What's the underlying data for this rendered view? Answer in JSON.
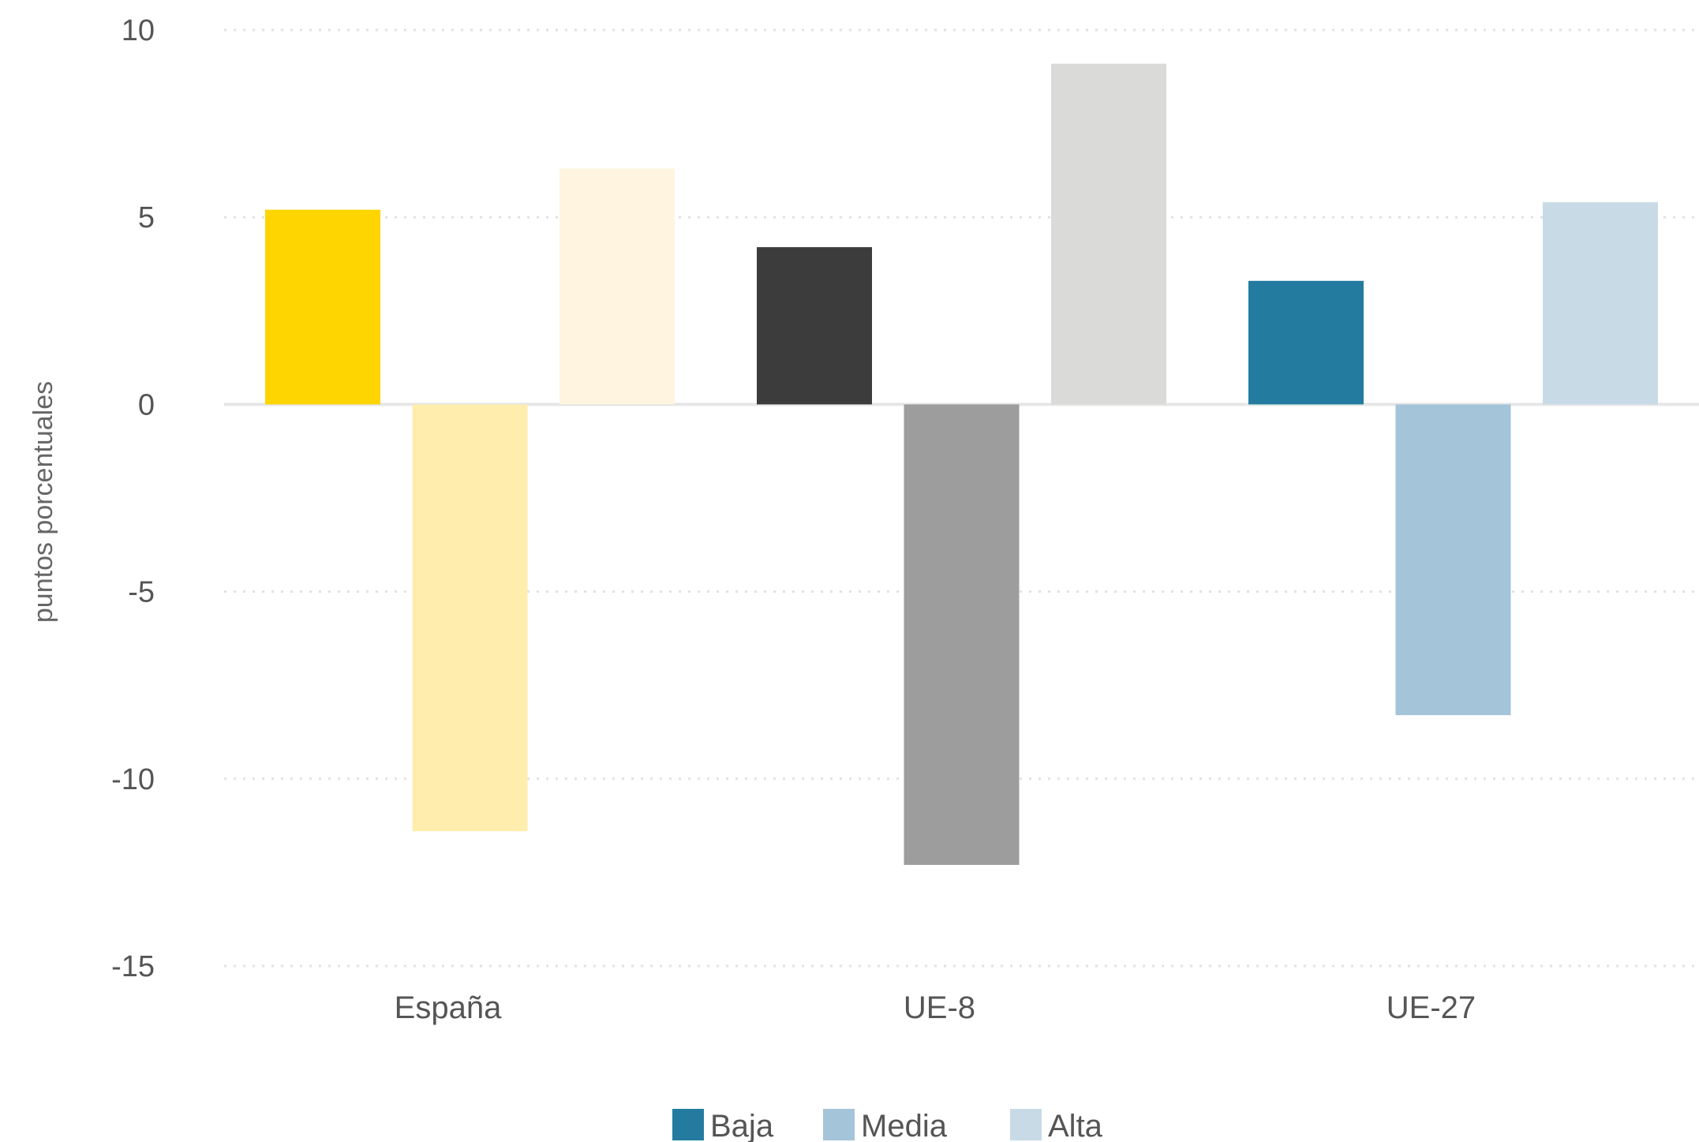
{
  "chart_data": {
    "type": "bar",
    "title": "",
    "xlabel": "",
    "ylabel": "puntos porcentuales",
    "ylim": [
      -15,
      10
    ],
    "yticks": [
      10,
      5,
      0,
      -5,
      -10,
      -15
    ],
    "ytick_labels": [
      "10",
      "5",
      "0",
      "-5",
      "-10",
      "-15"
    ],
    "grid": true,
    "legend_position": "bottom-center",
    "categories": [
      "España",
      "UE-8",
      "UE-27"
    ],
    "series": [
      {
        "name": "Baja",
        "values": [
          5.2,
          4.2,
          3.3
        ]
      },
      {
        "name": "Media",
        "values": [
          -11.4,
          -12.3,
          -8.3
        ]
      },
      {
        "name": "Alta",
        "values": [
          6.3,
          9.1,
          5.4
        ]
      }
    ],
    "bar_colors": [
      [
        "#FFD500",
        "#FFEDAE",
        "#FFF4E0"
      ],
      [
        "#3C3C3C",
        "#9D9D9D",
        "#DADAD8"
      ],
      [
        "#237CA0",
        "#A4C4DA",
        "#C8DAE6"
      ]
    ],
    "legend_colors": [
      "#237CA0",
      "#A4C4DA",
      "#C8DAE6"
    ]
  }
}
